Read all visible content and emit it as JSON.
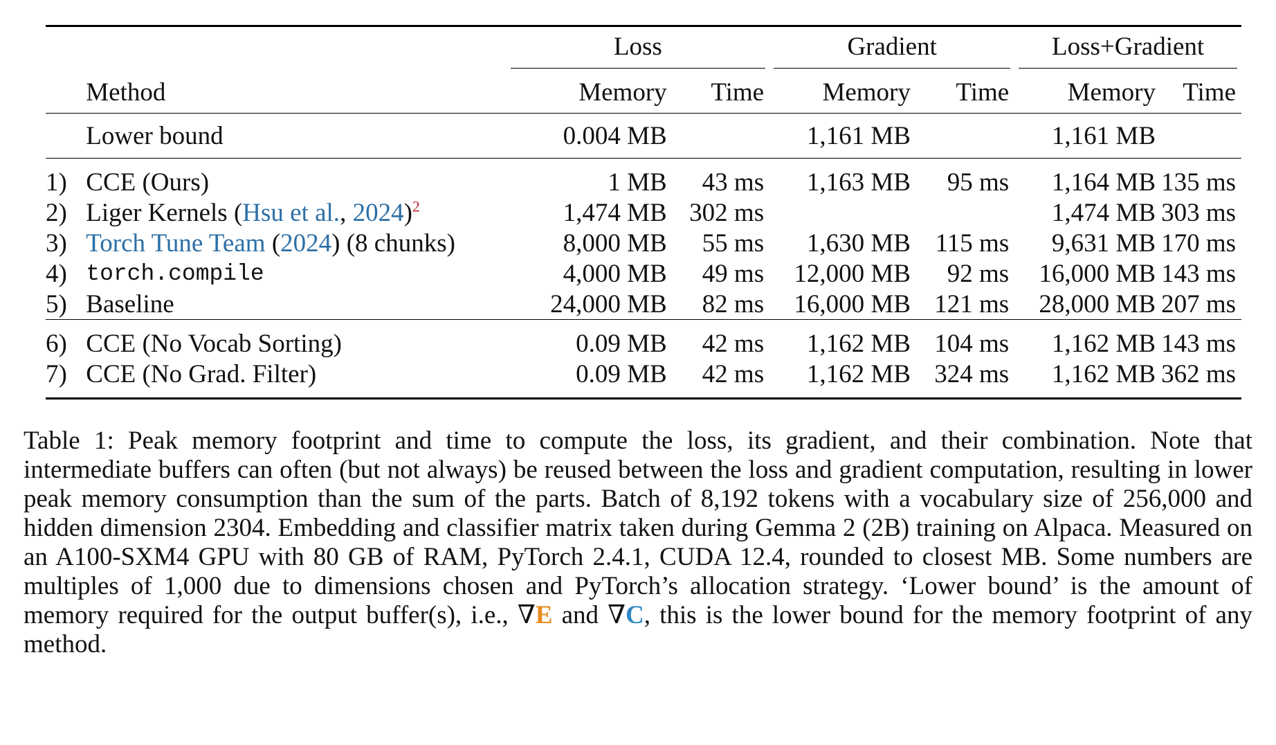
{
  "table": {
    "group_headers": [
      "Loss",
      "Gradient",
      "Loss+Gradient"
    ],
    "method_header": "Method",
    "sub_headers": [
      "Memory",
      "Time",
      "Memory",
      "Time",
      "Memory",
      "Time"
    ],
    "lower_bound": {
      "method": "Lower bound",
      "loss_memory": "0.004 MB",
      "loss_time": "",
      "grad_memory": "1,161 MB",
      "grad_time": "",
      "lg_memory": "1,161 MB",
      "lg_time": ""
    },
    "rows": [
      {
        "idx": "1)",
        "method": "CCE (Ours)",
        "loss_memory": "1 MB",
        "loss_time": "43 ms",
        "grad_memory": "1,163 MB",
        "grad_time": "95 ms",
        "lg_memory": "1,164 MB",
        "lg_time": "135 ms"
      },
      {
        "idx": "2)",
        "method_prefix": "Liger Kernels (",
        "method_cite_author": "Hsu et al.",
        "method_sep": ", ",
        "method_cite_year": "2024",
        "method_suffix": ")",
        "footnote": "2",
        "loss_memory": "1,474 MB",
        "loss_time": "302 ms",
        "grad_memory": "",
        "grad_time": "",
        "lg_memory": "1,474 MB",
        "lg_time": "303 ms"
      },
      {
        "idx": "3)",
        "method_cite_author": "Torch Tune Team",
        "method_open": " (",
        "method_cite_year": "2024",
        "method_suffix": ") (8 chunks)",
        "loss_memory": "8,000 MB",
        "loss_time": "55 ms",
        "grad_memory": "1,630 MB",
        "grad_time": "115 ms",
        "lg_memory": "9,631 MB",
        "lg_time": "170 ms"
      },
      {
        "idx": "4)",
        "method": "torch.compile",
        "loss_memory": "4,000 MB",
        "loss_time": "49 ms",
        "grad_memory": "12,000 MB",
        "grad_time": "92 ms",
        "lg_memory": "16,000 MB",
        "lg_time": "143 ms"
      },
      {
        "idx": "5)",
        "method": "Baseline",
        "loss_memory": "24,000 MB",
        "loss_time": "82 ms",
        "grad_memory": "16,000 MB",
        "grad_time": "121 ms",
        "lg_memory": "28,000 MB",
        "lg_time": "207 ms"
      },
      {
        "idx": "6)",
        "method": "CCE (No Vocab Sorting)",
        "loss_memory": "0.09 MB",
        "loss_time": "42 ms",
        "grad_memory": "1,162 MB",
        "grad_time": "104 ms",
        "lg_memory": "1,162 MB",
        "lg_time": "143 ms"
      },
      {
        "idx": "7)",
        "method": "CCE (No Grad. Filter)",
        "loss_memory": "0.09 MB",
        "loss_time": "42 ms",
        "grad_memory": "1,162 MB",
        "grad_time": "324 ms",
        "lg_memory": "1,162 MB",
        "lg_time": "362 ms"
      }
    ]
  },
  "caption": {
    "part1": "Table 1: Peak memory footprint and time to compute the loss, its gradient, and their combination. Note that intermediate buffers can often (but not always) be reused between the loss and gradient computation, resulting in lower peak memory consumption than the sum of the parts. Batch of 8,192 tokens with a vocabulary size of 256,000 and hidden dimension 2304. Embedding and classifier matrix taken during Gemma 2 (2B) training on Alpaca. Measured on an A100-SXM4 GPU with 80 GB of RAM, PyTorch 2.4.1, CUDA 12.4, rounded to closest MB. Some numbers are multiples of 1,000 due to dimensions chosen and PyTorch’s allocation strategy. ‘Lower bound’ is the amount of memory required for the output buffer(s), i.e., ",
    "nabla1": "∇",
    "sym_e": "E",
    "part2": " and ",
    "nabla2": "∇",
    "sym_c": "C",
    "part3": ", this is the lower bound for the memory footprint of any method."
  },
  "colors": {
    "citation": "#2c6fa6",
    "footnote": "#c0262d",
    "grad_e": "#e8891c",
    "grad_c": "#2f86c2"
  }
}
